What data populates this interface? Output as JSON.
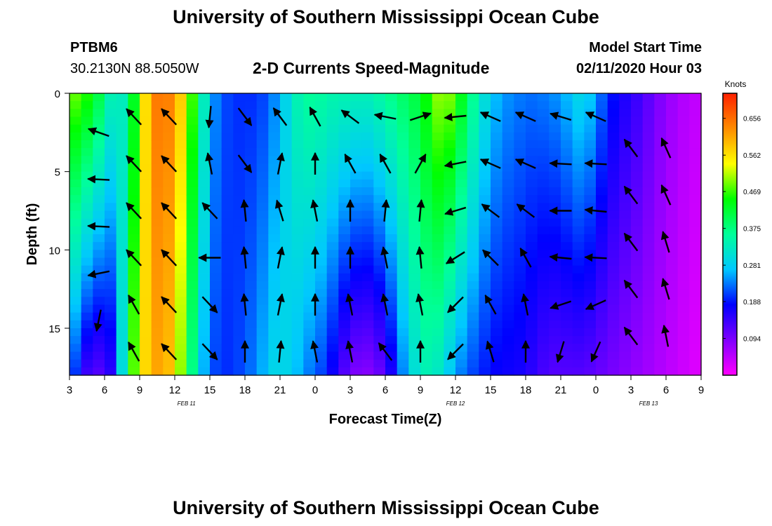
{
  "header": {
    "title": "University of Southern Mississippi Ocean Cube",
    "station": "PTBM6",
    "coords": "30.2130N 88.5050W",
    "subtitle": "2-D Currents Speed-Magnitude",
    "model_start_label": "Model Start Time",
    "model_start_value": "02/11/2020 Hour 03"
  },
  "footer": {
    "title": "University of Southern Mississippi Ocean Cube"
  },
  "chart_data": {
    "type": "heatmap",
    "title": "2-D Currents Speed-Magnitude",
    "xlabel": "Forecast Time(Z)",
    "ylabel": "Depth (ft)",
    "x_ticks": [
      "3",
      "6",
      "9",
      "12",
      "15",
      "18",
      "21",
      "0",
      "3",
      "6",
      "9",
      "12",
      "15",
      "18",
      "21",
      "0",
      "3",
      "6",
      "9"
    ],
    "x_range_hours": [
      0,
      54
    ],
    "day_labels": [
      {
        "text": "FEB 11",
        "hour": 10
      },
      {
        "text": "FEB 12",
        "hour": 33
      },
      {
        "text": "FEB 13",
        "hour": 49.5
      }
    ],
    "y_ticks": [
      0,
      5,
      10,
      15
    ],
    "ylim": [
      0,
      18
    ],
    "y_inverted": true,
    "colorbar": {
      "label": "Knots",
      "ticks": [
        "0.656",
        "0.562",
        "0.469",
        "0.375",
        "0.281",
        "0.188",
        "0.094"
      ],
      "tick_values": [
        0.656,
        0.562,
        0.469,
        0.375,
        0.281,
        0.188,
        0.094
      ],
      "range": [
        0,
        0.72
      ],
      "colors": [
        "#ff00ff",
        "#8000ff",
        "#0000ff",
        "#00c8ff",
        "#00ff9a",
        "#00ff00",
        "#ffff00",
        "#ff8c00",
        "#ff2000"
      ]
    },
    "speed_profile": {
      "hours": [
        0,
        1,
        2,
        3,
        4,
        5,
        6,
        7,
        8,
        9,
        10,
        11,
        12,
        13,
        14,
        15,
        16,
        17,
        18,
        19,
        20,
        21,
        22,
        23,
        24,
        25,
        26,
        27,
        28,
        29,
        30,
        31,
        32,
        33,
        34,
        35,
        36,
        37,
        38,
        39,
        40,
        41,
        42,
        43,
        44,
        45,
        46,
        47,
        48,
        49,
        50,
        51,
        52,
        53,
        54
      ],
      "surface_knots": [
        0.49,
        0.48,
        0.44,
        0.38,
        0.3,
        0.36,
        0.5,
        0.63,
        0.66,
        0.62,
        0.54,
        0.4,
        0.26,
        0.22,
        0.2,
        0.2,
        0.2,
        0.22,
        0.26,
        0.32,
        0.36,
        0.36,
        0.35,
        0.34,
        0.34,
        0.33,
        0.34,
        0.36,
        0.38,
        0.4,
        0.42,
        0.48,
        0.52,
        0.47,
        0.4,
        0.33,
        0.28,
        0.25,
        0.24,
        0.23,
        0.23,
        0.24,
        0.25,
        0.28,
        0.3,
        0.25,
        0.2,
        0.17,
        0.15,
        0.13,
        0.1,
        0.08,
        0.06,
        0.05,
        0.04
      ],
      "bottom_knots": [
        0.25,
        0.15,
        0.12,
        0.12,
        0.18,
        0.42,
        0.54,
        0.6,
        0.62,
        0.56,
        0.44,
        0.3,
        0.22,
        0.2,
        0.2,
        0.22,
        0.24,
        0.28,
        0.3,
        0.28,
        0.25,
        0.22,
        0.2,
        0.14,
        0.1,
        0.08,
        0.09,
        0.12,
        0.2,
        0.28,
        0.33,
        0.34,
        0.3,
        0.25,
        0.22,
        0.2,
        0.18,
        0.17,
        0.17,
        0.16,
        0.14,
        0.12,
        0.12,
        0.12,
        0.12,
        0.11,
        0.1,
        0.09,
        0.08,
        0.07,
        0.06,
        0.05,
        0.04,
        0.03,
        0.02
      ]
    },
    "vectors": [
      {
        "hour": 2.5,
        "depth": 2.5,
        "u": -1.0,
        "v": 0.35
      },
      {
        "hour": 2.5,
        "depth": 5.5,
        "u": -1.0,
        "v": 0.05
      },
      {
        "hour": 2.5,
        "depth": 8.5,
        "u": -1.0,
        "v": 0.05
      },
      {
        "hour": 2.5,
        "depth": 11.5,
        "u": -1.0,
        "v": -0.2
      },
      {
        "hour": 2.5,
        "depth": 14.5,
        "u": -0.2,
        "v": -1.0
      },
      {
        "hour": 5.5,
        "depth": 1.5,
        "u": -0.7,
        "v": 0.75
      },
      {
        "hour": 5.5,
        "depth": 4.5,
        "u": -0.7,
        "v": 0.75
      },
      {
        "hour": 5.5,
        "depth": 7.5,
        "u": -0.7,
        "v": 0.75
      },
      {
        "hour": 5.5,
        "depth": 10.5,
        "u": -0.7,
        "v": 0.75
      },
      {
        "hour": 5.5,
        "depth": 13.5,
        "u": -0.5,
        "v": 0.9
      },
      {
        "hour": 5.5,
        "depth": 16.5,
        "u": -0.5,
        "v": 0.9
      },
      {
        "hour": 8.5,
        "depth": 1.5,
        "u": -0.7,
        "v": 0.75
      },
      {
        "hour": 8.5,
        "depth": 4.5,
        "u": -0.7,
        "v": 0.75
      },
      {
        "hour": 8.5,
        "depth": 7.5,
        "u": -0.7,
        "v": 0.75
      },
      {
        "hour": 8.5,
        "depth": 10.5,
        "u": -0.7,
        "v": 0.75
      },
      {
        "hour": 8.5,
        "depth": 13.5,
        "u": -0.7,
        "v": 0.75
      },
      {
        "hour": 8.5,
        "depth": 16.5,
        "u": -0.7,
        "v": 0.75
      },
      {
        "hour": 12,
        "depth": 1.5,
        "u": -0.1,
        "v": -1.0
      },
      {
        "hour": 12,
        "depth": 4.5,
        "u": -0.2,
        "v": 1.0
      },
      {
        "hour": 12,
        "depth": 7.5,
        "u": -0.7,
        "v": 0.75
      },
      {
        "hour": 12,
        "depth": 10.5,
        "u": -1.0,
        "v": 0.0
      },
      {
        "hour": 12,
        "depth": 13.5,
        "u": 0.7,
        "v": -0.75
      },
      {
        "hour": 12,
        "depth": 16.5,
        "u": 0.7,
        "v": -0.75
      },
      {
        "hour": 15,
        "depth": 1.5,
        "u": 0.6,
        "v": -0.8
      },
      {
        "hour": 15,
        "depth": 4.5,
        "u": 0.6,
        "v": -0.8
      },
      {
        "hour": 15,
        "depth": 7.5,
        "u": -0.1,
        "v": 1.0
      },
      {
        "hour": 15,
        "depth": 10.5,
        "u": -0.1,
        "v": 1.0
      },
      {
        "hour": 15,
        "depth": 13.5,
        "u": -0.1,
        "v": 1.0
      },
      {
        "hour": 15,
        "depth": 16.5,
        "u": 0.0,
        "v": 1.0
      },
      {
        "hour": 18,
        "depth": 1.5,
        "u": -0.6,
        "v": 0.8
      },
      {
        "hour": 18,
        "depth": 4.5,
        "u": 0.2,
        "v": 1.0
      },
      {
        "hour": 18,
        "depth": 7.5,
        "u": -0.3,
        "v": 1.0
      },
      {
        "hour": 18,
        "depth": 10.5,
        "u": 0.2,
        "v": 1.0
      },
      {
        "hour": 18,
        "depth": 13.5,
        "u": 0.2,
        "v": 1.0
      },
      {
        "hour": 18,
        "depth": 16.5,
        "u": 0.1,
        "v": 1.0
      },
      {
        "hour": 21,
        "depth": 1.5,
        "u": -0.5,
        "v": 0.9
      },
      {
        "hour": 21,
        "depth": 4.5,
        "u": 0.0,
        "v": 1.0
      },
      {
        "hour": 21,
        "depth": 7.5,
        "u": -0.2,
        "v": 1.0
      },
      {
        "hour": 21,
        "depth": 10.5,
        "u": 0.0,
        "v": 1.0
      },
      {
        "hour": 21,
        "depth": 13.5,
        "u": 0.0,
        "v": 1.0
      },
      {
        "hour": 21,
        "depth": 16.5,
        "u": -0.2,
        "v": 1.0
      },
      {
        "hour": 24,
        "depth": 1.5,
        "u": -0.8,
        "v": 0.6
      },
      {
        "hour": 24,
        "depth": 4.5,
        "u": -0.5,
        "v": 0.9
      },
      {
        "hour": 24,
        "depth": 7.5,
        "u": 0.0,
        "v": 1.0
      },
      {
        "hour": 24,
        "depth": 10.5,
        "u": 0.0,
        "v": 1.0
      },
      {
        "hour": 24,
        "depth": 13.5,
        "u": -0.2,
        "v": 1.0
      },
      {
        "hour": 24,
        "depth": 16.5,
        "u": -0.2,
        "v": 1.0
      },
      {
        "hour": 27,
        "depth": 1.5,
        "u": -1.0,
        "v": 0.2
      },
      {
        "hour": 27,
        "depth": 4.5,
        "u": -0.5,
        "v": 0.9
      },
      {
        "hour": 27,
        "depth": 7.5,
        "u": 0.1,
        "v": 1.0
      },
      {
        "hour": 27,
        "depth": 10.5,
        "u": -0.2,
        "v": 1.0
      },
      {
        "hour": 27,
        "depth": 13.5,
        "u": -0.2,
        "v": 1.0
      },
      {
        "hour": 27,
        "depth": 16.5,
        "u": -0.6,
        "v": 0.8
      },
      {
        "hour": 30,
        "depth": 1.5,
        "u": 0.9,
        "v": 0.3
      },
      {
        "hour": 30,
        "depth": 4.5,
        "u": 0.5,
        "v": 0.9
      },
      {
        "hour": 30,
        "depth": 7.5,
        "u": 0.1,
        "v": 1.0
      },
      {
        "hour": 30,
        "depth": 10.5,
        "u": -0.1,
        "v": 1.0
      },
      {
        "hour": 30,
        "depth": 13.5,
        "u": -0.2,
        "v": 1.0
      },
      {
        "hour": 30,
        "depth": 16.5,
        "u": 0.0,
        "v": 1.0
      },
      {
        "hour": 33,
        "depth": 1.5,
        "u": -1.0,
        "v": -0.1
      },
      {
        "hour": 33,
        "depth": 4.5,
        "u": -1.0,
        "v": -0.2
      },
      {
        "hour": 33,
        "depth": 7.5,
        "u": -1.0,
        "v": -0.3
      },
      {
        "hour": 33,
        "depth": 10.5,
        "u": -0.8,
        "v": -0.5
      },
      {
        "hour": 33,
        "depth": 13.5,
        "u": -0.7,
        "v": -0.7
      },
      {
        "hour": 33,
        "depth": 16.5,
        "u": -0.7,
        "v": -0.7
      },
      {
        "hour": 36,
        "depth": 1.5,
        "u": -0.9,
        "v": 0.4
      },
      {
        "hour": 36,
        "depth": 4.5,
        "u": -0.9,
        "v": 0.4
      },
      {
        "hour": 36,
        "depth": 7.5,
        "u": -0.8,
        "v": 0.6
      },
      {
        "hour": 36,
        "depth": 10.5,
        "u": -0.7,
        "v": 0.7
      },
      {
        "hour": 36,
        "depth": 13.5,
        "u": -0.5,
        "v": 0.9
      },
      {
        "hour": 36,
        "depth": 16.5,
        "u": -0.3,
        "v": 1.0
      },
      {
        "hour": 39,
        "depth": 1.5,
        "u": -0.9,
        "v": 0.4
      },
      {
        "hour": 39,
        "depth": 4.5,
        "u": -0.9,
        "v": 0.4
      },
      {
        "hour": 39,
        "depth": 7.5,
        "u": -0.8,
        "v": 0.6
      },
      {
        "hour": 39,
        "depth": 10.5,
        "u": -0.5,
        "v": 0.9
      },
      {
        "hour": 39,
        "depth": 13.5,
        "u": -0.2,
        "v": 1.0
      },
      {
        "hour": 39,
        "depth": 16.5,
        "u": 0.0,
        "v": 1.0
      },
      {
        "hour": 42,
        "depth": 1.5,
        "u": -1.0,
        "v": 0.3
      },
      {
        "hour": 42,
        "depth": 4.5,
        "u": -1.0,
        "v": 0.05
      },
      {
        "hour": 42,
        "depth": 7.5,
        "u": -1.0,
        "v": 0.0
      },
      {
        "hour": 42,
        "depth": 10.5,
        "u": -1.0,
        "v": 0.1
      },
      {
        "hour": 42,
        "depth": 13.5,
        "u": -0.9,
        "v": -0.3
      },
      {
        "hour": 42,
        "depth": 16.5,
        "u": -0.3,
        "v": -1.0
      },
      {
        "hour": 45,
        "depth": 1.5,
        "u": -0.9,
        "v": 0.4
      },
      {
        "hour": 45,
        "depth": 4.5,
        "u": -1.0,
        "v": 0.05
      },
      {
        "hour": 45,
        "depth": 7.5,
        "u": -1.0,
        "v": 0.1
      },
      {
        "hour": 45,
        "depth": 10.5,
        "u": -1.0,
        "v": 0.05
      },
      {
        "hour": 45,
        "depth": 13.5,
        "u": -0.9,
        "v": -0.4
      },
      {
        "hour": 45,
        "depth": 16.5,
        "u": -0.4,
        "v": -0.9
      },
      {
        "hour": 48,
        "depth": 3.5,
        "u": -0.6,
        "v": 0.8
      },
      {
        "hour": 48,
        "depth": 6.5,
        "u": -0.6,
        "v": 0.8
      },
      {
        "hour": 48,
        "depth": 9.5,
        "u": -0.6,
        "v": 0.8
      },
      {
        "hour": 48,
        "depth": 12.5,
        "u": -0.6,
        "v": 0.8
      },
      {
        "hour": 48,
        "depth": 15.5,
        "u": -0.6,
        "v": 0.8
      },
      {
        "hour": 51,
        "depth": 3.5,
        "u": -0.4,
        "v": 0.9
      },
      {
        "hour": 51,
        "depth": 6.5,
        "u": -0.4,
        "v": 0.9
      },
      {
        "hour": 51,
        "depth": 9.5,
        "u": -0.3,
        "v": 1.0
      },
      {
        "hour": 51,
        "depth": 12.5,
        "u": -0.3,
        "v": 1.0
      },
      {
        "hour": 51,
        "depth": 15.5,
        "u": -0.2,
        "v": 1.0
      }
    ]
  }
}
